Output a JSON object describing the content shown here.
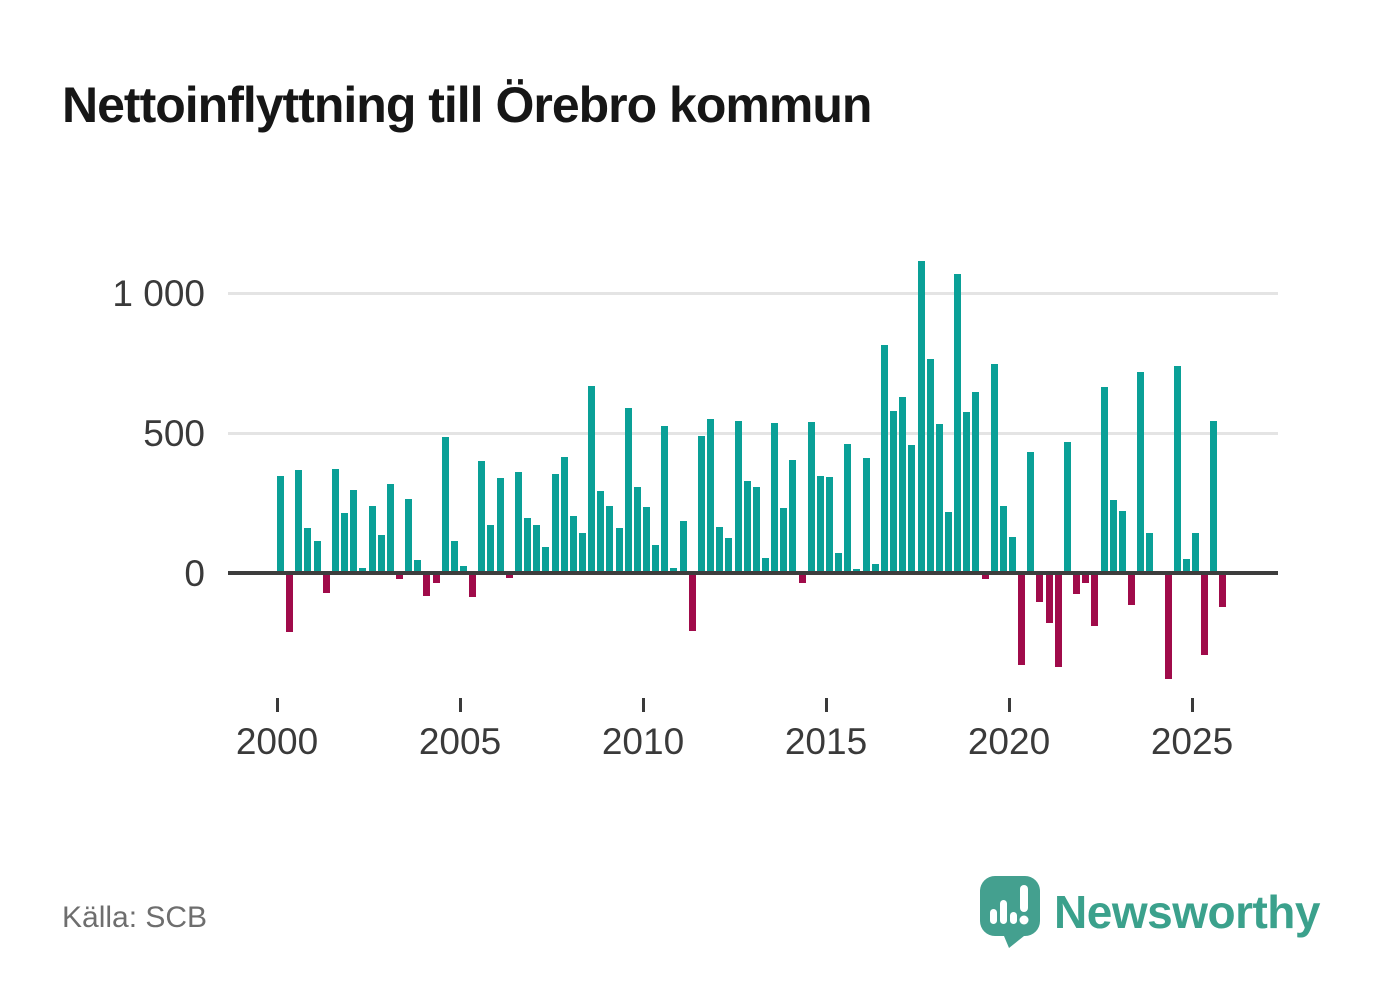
{
  "title": "Nettoinflyttning till Örebro kommun",
  "source": "Källa: SCB",
  "brand": {
    "name": "Newsworthy",
    "color": "#3ba18c",
    "icon": "speech-bubble-bar-chart"
  },
  "chart_data": {
    "type": "bar",
    "title": "Nettoinflyttning till Örebro kommun",
    "frequency": "quarterly",
    "x_start": "2000Q1",
    "x_end": "2025Q4",
    "grid": "horizontal",
    "legend": "none",
    "positive_color": "#0aa097",
    "negative_color": "#a00b4a",
    "y_ticks": [
      0,
      500,
      1000
    ],
    "y_tick_labels": [
      "0",
      "500",
      "1 000"
    ],
    "x_ticks": [
      2000,
      2005,
      2010,
      2015,
      2020,
      2025
    ],
    "x_tick_labels": [
      "2000",
      "2005",
      "2010",
      "2015",
      "2020",
      "2025"
    ],
    "ylim": [
      -400,
      1150
    ],
    "categories": [
      "2000Q1",
      "2000Q2",
      "2000Q3",
      "2000Q4",
      "2001Q1",
      "2001Q2",
      "2001Q3",
      "2001Q4",
      "2002Q1",
      "2002Q2",
      "2002Q3",
      "2002Q4",
      "2003Q1",
      "2003Q2",
      "2003Q3",
      "2003Q4",
      "2004Q1",
      "2004Q2",
      "2004Q3",
      "2004Q4",
      "2005Q1",
      "2005Q2",
      "2005Q3",
      "2005Q4",
      "2006Q1",
      "2006Q2",
      "2006Q3",
      "2006Q4",
      "2007Q1",
      "2007Q2",
      "2007Q3",
      "2007Q4",
      "2008Q1",
      "2008Q2",
      "2008Q3",
      "2008Q4",
      "2009Q1",
      "2009Q2",
      "2009Q3",
      "2009Q4",
      "2010Q1",
      "2010Q2",
      "2010Q3",
      "2010Q4",
      "2011Q1",
      "2011Q2",
      "2011Q3",
      "2011Q4",
      "2012Q1",
      "2012Q2",
      "2012Q3",
      "2012Q4",
      "2013Q1",
      "2013Q2",
      "2013Q3",
      "2013Q4",
      "2014Q1",
      "2014Q2",
      "2014Q3",
      "2014Q4",
      "2015Q1",
      "2015Q2",
      "2015Q3",
      "2015Q4",
      "2016Q1",
      "2016Q2",
      "2016Q3",
      "2016Q4",
      "2017Q1",
      "2017Q2",
      "2017Q3",
      "2017Q4",
      "2018Q1",
      "2018Q2",
      "2018Q3",
      "2018Q4",
      "2019Q1",
      "2019Q2",
      "2019Q3",
      "2019Q4",
      "2020Q1",
      "2020Q2",
      "2020Q3",
      "2020Q4",
      "2021Q1",
      "2021Q2",
      "2021Q3",
      "2021Q4",
      "2022Q1",
      "2022Q2",
      "2022Q3",
      "2022Q4",
      "2023Q1",
      "2023Q2",
      "2023Q3",
      "2023Q4",
      "2024Q1",
      "2024Q2",
      "2024Q3",
      "2024Q4",
      "2025Q1",
      "2025Q2",
      "2025Q3",
      "2025Q4"
    ],
    "values": [
      345,
      -210,
      367,
      159,
      113,
      -70,
      372,
      215,
      296,
      19,
      241,
      135,
      317,
      -20,
      263,
      45,
      -83,
      -37,
      485,
      113,
      24,
      -87,
      400,
      171,
      339,
      -19,
      361,
      195,
      171,
      94,
      354,
      415,
      204,
      142,
      668,
      293,
      239,
      160,
      588,
      306,
      237,
      100,
      526,
      17,
      185,
      -207,
      489,
      550,
      165,
      126,
      544,
      330,
      308,
      55,
      537,
      231,
      404,
      -35,
      538,
      348,
      344,
      70,
      461,
      14,
      410,
      31,
      813,
      578,
      630,
      457,
      1114,
      765,
      531,
      217,
      1069,
      576,
      646,
      -23,
      745,
      239,
      130,
      -330,
      433,
      -103,
      -180,
      -337,
      468,
      -76,
      -37,
      -188,
      663,
      260,
      221,
      -115,
      718,
      143,
      0,
      -380,
      740,
      51,
      143,
      -294,
      542,
      -121
    ]
  }
}
